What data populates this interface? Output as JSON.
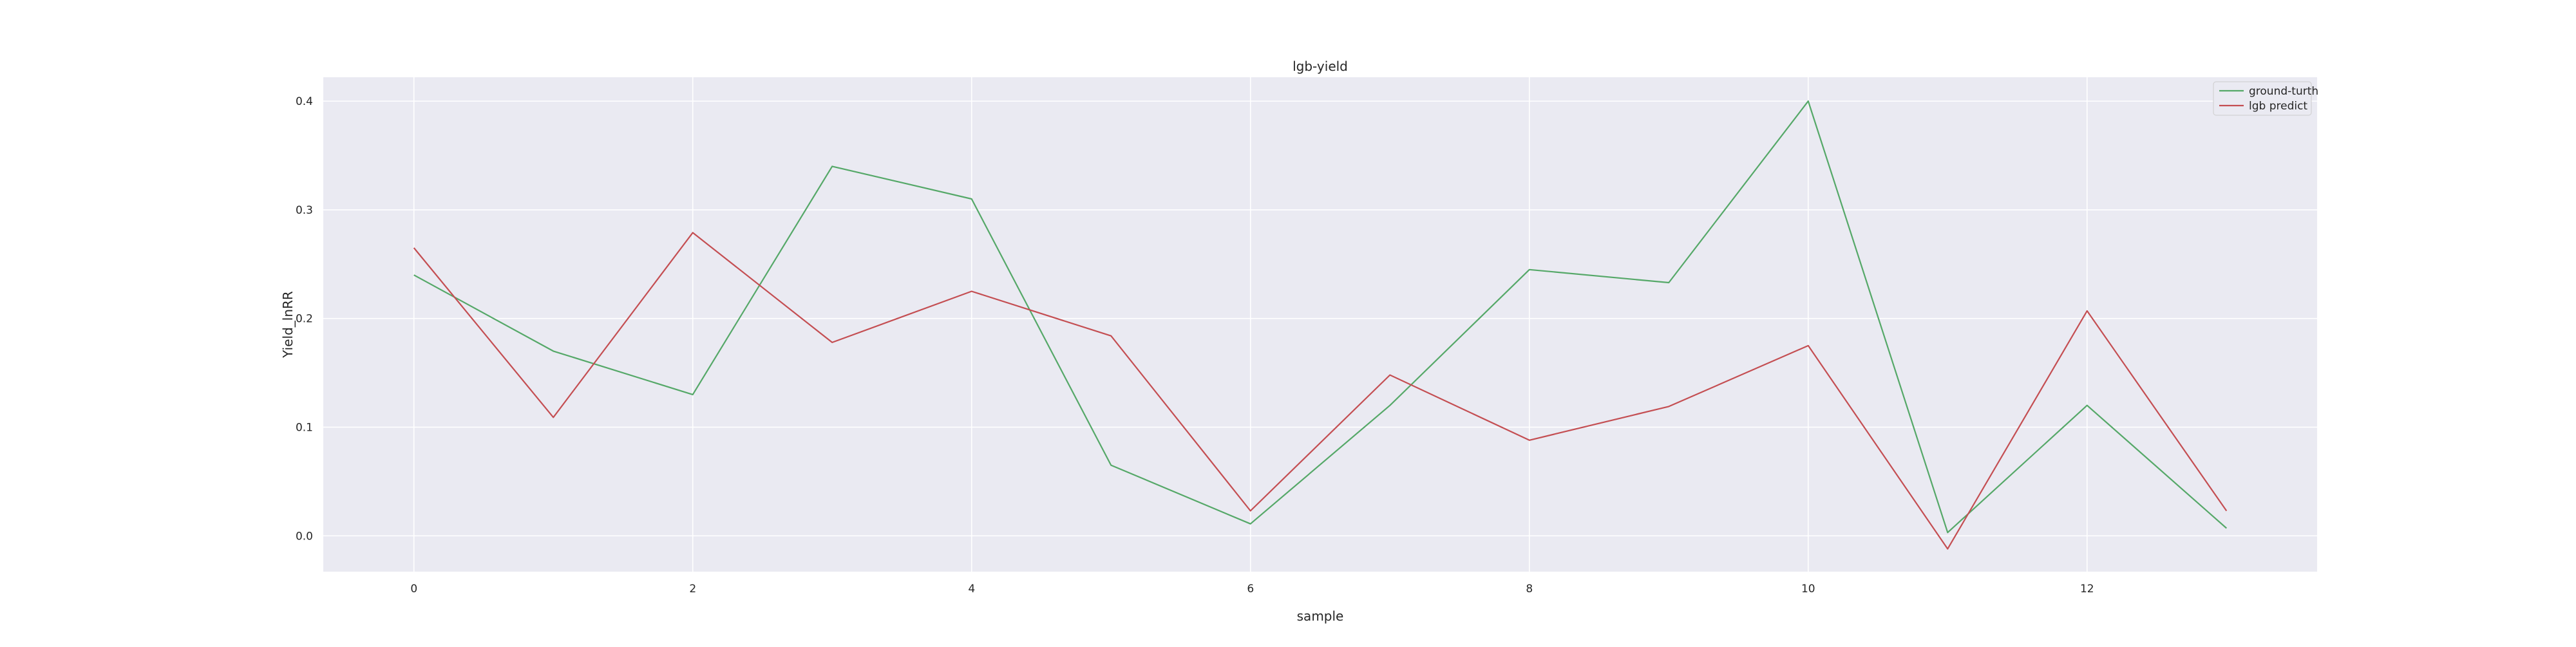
{
  "chart_data": {
    "type": "line",
    "title": "lgb-yield",
    "xlabel": "sample",
    "ylabel": "Yield_lnRR",
    "x": [
      0,
      1,
      2,
      3,
      4,
      5,
      6,
      7,
      8,
      9,
      10,
      11,
      12,
      13
    ],
    "xlim": [
      -0.65,
      13.65
    ],
    "ylim": [
      -0.033,
      0.422
    ],
    "xticks": [
      0,
      2,
      4,
      6,
      8,
      10,
      12
    ],
    "xtick_labels": [
      "0",
      "2",
      "4",
      "6",
      "8",
      "10",
      "12"
    ],
    "yticks": [
      0.0,
      0.1,
      0.2,
      0.3,
      0.4
    ],
    "ytick_labels": [
      "0.0",
      "0.1",
      "0.2",
      "0.3",
      "0.4"
    ],
    "grid": true,
    "legend_position": "top-right",
    "colors": {
      "plot_background": "#eaeaf2",
      "grid": "#ffffff",
      "ground_truth": "#55a868",
      "prediction": "#c44e52"
    },
    "series": [
      {
        "name": "ground-turth",
        "color": "#55a868",
        "values": [
          0.24,
          0.17,
          0.13,
          0.34,
          0.31,
          0.065,
          0.011,
          0.12,
          0.245,
          0.233,
          0.4,
          0.003,
          0.12,
          0.007
        ]
      },
      {
        "name": "lgb predict",
        "color": "#c44e52",
        "values": [
          0.265,
          0.109,
          0.279,
          0.178,
          0.225,
          0.184,
          0.023,
          0.148,
          0.088,
          0.119,
          0.175,
          -0.012,
          0.207,
          0.023
        ]
      }
    ]
  }
}
